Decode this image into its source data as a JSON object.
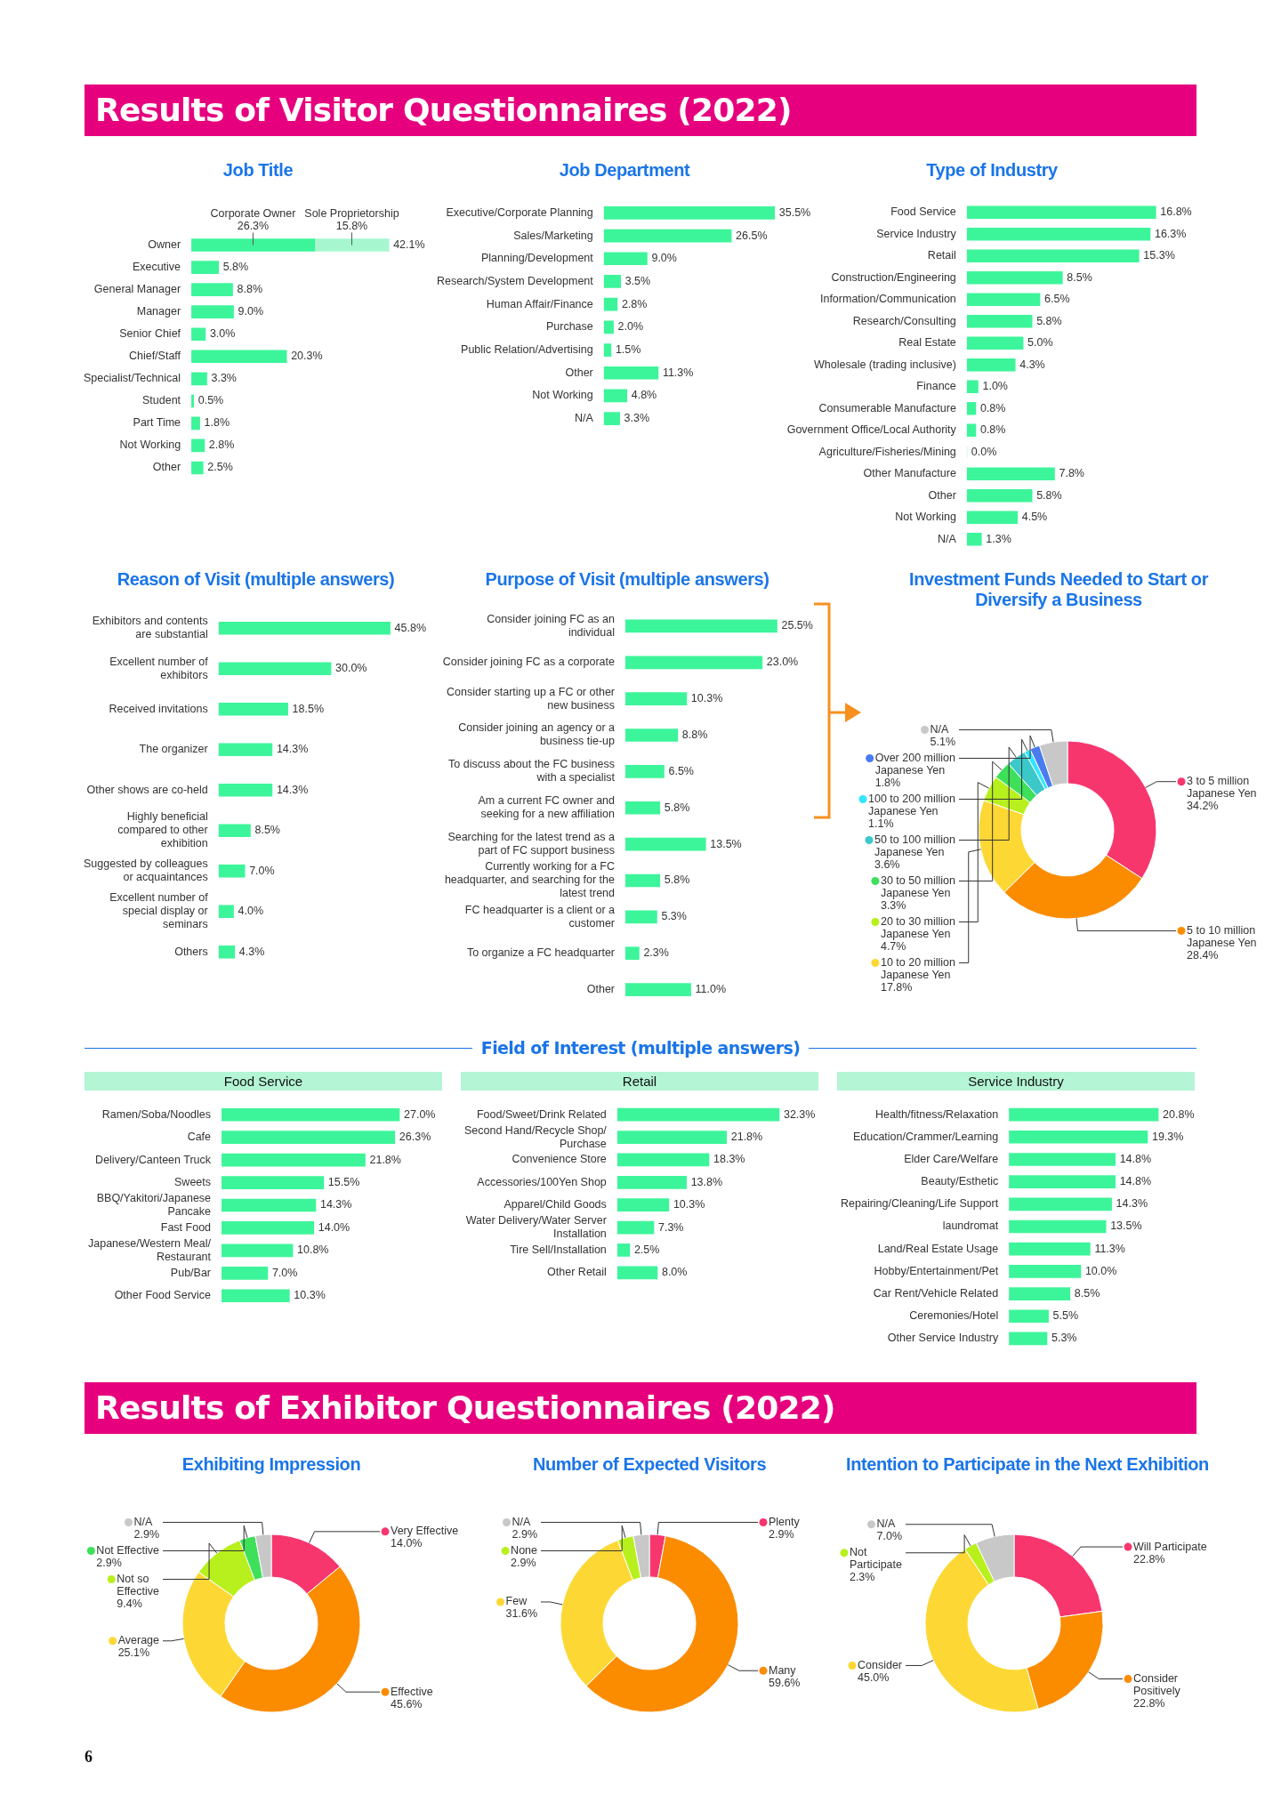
{
  "chart_data": [
    {
      "type": "other",
      "title": "Results of Visitor Questionnaires (2022)"
    },
    {
      "type": "bar",
      "title": "Job Title",
      "orientation": "horizontal",
      "stacked": true,
      "categories": [
        "Owner",
        "Executive",
        "General Manager",
        "Manager",
        "Senior Chief",
        "Chief/Staff",
        "Specialist/Technical",
        "Student",
        "Part Time",
        "Not Working",
        "Other"
      ],
      "series": [
        {
          "name": "Corporate Owner",
          "color": "#3cf59a",
          "values": [
            26.3,
            5.8,
            8.8,
            9.0,
            3.0,
            20.3,
            3.3,
            0.5,
            1.8,
            2.8,
            2.5
          ],
          "value_labels": [
            "26.3%",
            "5.8%",
            "8.8%",
            "9.0%",
            "3.0%",
            "20.3%",
            "3.3%",
            "0.5%",
            "1.8%",
            "2.8%",
            "2.5%"
          ]
        },
        {
          "name": "Sole Proprietorship",
          "color": "#a6f7cf",
          "values": [
            15.8,
            null,
            null,
            null,
            null,
            null,
            null,
            null,
            null,
            null,
            null
          ],
          "value_labels": [
            "15.8%",
            null,
            null,
            null,
            null,
            null,
            null,
            null,
            null,
            null,
            null
          ]
        }
      ],
      "totals": [
        "42.1%",
        null,
        null,
        null,
        null,
        null,
        null,
        null,
        null,
        null,
        null
      ]
    },
    {
      "type": "bar",
      "title": "Job Department",
      "orientation": "horizontal",
      "color": "#3cf59a",
      "categories": [
        "Executive/Corporate Planning",
        "Sales/Marketing",
        "Planning/Development",
        "Research/System Development",
        "Human Affair/Finance",
        "Purchase",
        "Public Relation/Advertising",
        "Other",
        "Not Working",
        "N/A"
      ],
      "values": [
        35.5,
        26.5,
        9.0,
        3.5,
        2.8,
        2.0,
        1.5,
        11.3,
        4.8,
        3.3
      ],
      "value_labels": [
        "35.5%",
        "26.5%",
        "9.0%",
        "3.5%",
        "2.8%",
        "2.0%",
        "1.5%",
        "11.3%",
        "4.8%",
        "3.3%"
      ]
    },
    {
      "type": "bar",
      "title": "Type of Industry",
      "orientation": "horizontal",
      "color": "#3cf59a",
      "categories": [
        "Food Service",
        "Service Industry",
        "Retail",
        "Construction/Engineering",
        "Information/Communication",
        "Research/Consulting",
        "Real Estate",
        "Wholesale (trading inclusive)",
        "Finance",
        "Consumerable Manufacture",
        "Government Office/Local Authority",
        "Agriculture/Fisheries/Mining",
        "Other Manufacture",
        "Other",
        "Not Working",
        "N/A"
      ],
      "values": [
        16.8,
        16.3,
        15.3,
        8.5,
        6.5,
        5.8,
        5.0,
        4.3,
        1.0,
        0.8,
        0.8,
        0.0,
        7.8,
        5.8,
        4.5,
        1.3
      ],
      "value_labels": [
        "16.8%",
        "16.3%",
        "15.3%",
        "8.5%",
        "6.5%",
        "5.8%",
        "5.0%",
        "4.3%",
        "1.0%",
        "0.8%",
        "0.8%",
        "0.0%",
        "7.8%",
        "5.8%",
        "4.5%",
        "1.3%"
      ]
    },
    {
      "type": "bar",
      "title": "Reason of Visit (multiple answers)",
      "orientation": "horizontal",
      "color": "#3cf59a",
      "categories": [
        "Exhibitors and contents are substantial",
        "Excellent number of exhibitors",
        "Received invitations",
        "The organizer",
        "Other shows are co-held",
        "Highly beneficial compared to other exhibition",
        "Suggested by colleagues or acquaintances",
        "Excellent number of special display or seminars",
        "Others"
      ],
      "values": [
        45.8,
        30.0,
        18.5,
        14.3,
        14.3,
        8.5,
        7.0,
        4.0,
        4.3
      ],
      "value_labels": [
        "45.8%",
        "30.0%",
        "18.5%",
        "14.3%",
        "14.3%",
        "8.5%",
        "7.0%",
        "4.0%",
        "4.3%"
      ]
    },
    {
      "type": "bar",
      "title": "Purpose of Visit (multiple answers)",
      "orientation": "horizontal",
      "color": "#3cf59a",
      "categories": [
        "Consider joining FC as an individual",
        "Consider joining FC as a corporate",
        "Consider starting up a FC or other new business",
        "Consider joining an agency or a business tie-up",
        "To discuss about the FC business with a specialist",
        "Am a current FC owner and seeking for a new affiliation",
        "Searching for the latest trend as a part of FC support business",
        "Currently working for a FC headquarter, and searching for the latest trend",
        "FC headquarter is a client or a customer",
        "To organize a FC headquarter",
        "Other"
      ],
      "values": [
        25.5,
        23.0,
        10.3,
        8.8,
        6.5,
        5.8,
        13.5,
        5.8,
        5.3,
        2.3,
        11.0
      ],
      "value_labels": [
        "25.5%",
        "23.0%",
        "10.3%",
        "8.8%",
        "6.5%",
        "5.8%",
        "13.5%",
        "5.8%",
        "5.3%",
        "2.3%",
        "11.0%"
      ]
    },
    {
      "type": "donut",
      "title": "Investment Funds Needed to Start or Diversify a Business",
      "categories": [
        "3 to 5 million Japanese Yen",
        "5 to 10 million Japanese Yen",
        "10 to 20 million Japanese Yen",
        "20 to 30 million Japanese Yen",
        "30 to 50 million Japanese Yen",
        "50 to 100 million Japanese Yen",
        "100 to 200 million Japanese Yen",
        "Over 200 million Japanese Yen",
        "N/A"
      ],
      "values": [
        34.2,
        28.4,
        17.8,
        4.7,
        3.3,
        3.6,
        1.1,
        1.8,
        5.1
      ],
      "value_labels": [
        "34.2%",
        "28.4%",
        "17.8%",
        "4.7%",
        "3.3%",
        "3.6%",
        "1.1%",
        "1.8%",
        "5.1%"
      ],
      "colors": [
        "#f7366e",
        "#fb8c00",
        "#fdd835",
        "#b8f01e",
        "#3ee05a",
        "#3cc8c8",
        "#32e6ff",
        "#4a7cf0",
        "#c8c8c8"
      ],
      "legend": "left"
    },
    {
      "type": "other",
      "title": "Field of Interest (multiple answers)"
    },
    {
      "type": "bar",
      "title": "Food Service",
      "orientation": "horizontal",
      "color": "#3cf59a",
      "categories": [
        "Ramen/Soba/Noodles",
        "Cafe",
        "Delivery/Canteen Truck",
        "Sweets",
        "BBQ/Yakitori/Japanese Pancake",
        "Fast Food",
        "Japanese/Western Meal/Restaurant",
        "Pub/Bar",
        "Other Food Service"
      ],
      "values": [
        27.0,
        26.3,
        21.8,
        15.5,
        14.3,
        14.0,
        10.8,
        7.0,
        10.3
      ],
      "value_labels": [
        "27.0%",
        "26.3%",
        "21.8%",
        "15.5%",
        "14.3%",
        "14.0%",
        "10.8%",
        "7.0%",
        "10.3%"
      ]
    },
    {
      "type": "bar",
      "title": "Retail",
      "orientation": "horizontal",
      "color": "#3cf59a",
      "categories": [
        "Food/Sweet/Drink Related",
        "Second Hand/Recycle Shop/Purchase",
        "Convenience Store",
        "Accessories/100Yen Shop",
        "Apparel/Child Goods",
        "Water Delivery/Water Server Installation",
        "Tire Sell/Installation",
        "Other Retail"
      ],
      "values": [
        32.3,
        21.8,
        18.3,
        13.8,
        10.3,
        7.3,
        2.5,
        8.0
      ],
      "value_labels": [
        "32.3%",
        "21.8%",
        "18.3%",
        "13.8%",
        "10.3%",
        "7.3%",
        "2.5%",
        "8.0%"
      ]
    },
    {
      "type": "bar",
      "title": "Service Industry",
      "orientation": "horizontal",
      "color": "#3cf59a",
      "categories": [
        "Health/fitness/Relaxation",
        "Education/Crammer/Learning",
        "Elder Care/Welfare",
        "Beauty/Esthetic",
        "Repairing/Cleaning/Life Support",
        "laundromat",
        "Land/Real Estate Usage",
        "Hobby/Entertainment/Pet",
        "Car Rent/Vehicle Related",
        "Ceremonies/Hotel",
        "Other Service Industry"
      ],
      "values": [
        20.8,
        19.3,
        14.8,
        14.8,
        14.3,
        13.5,
        11.3,
        10.0,
        8.5,
        5.5,
        5.3
      ],
      "value_labels": [
        "20.8%",
        "19.3%",
        "14.8%",
        "14.8%",
        "14.3%",
        "13.5%",
        "11.3%",
        "10.0%",
        "8.5%",
        "5.5%",
        "5.3%"
      ]
    },
    {
      "type": "other",
      "title": "Results of Exhibitor Questionnaires (2022)"
    },
    {
      "type": "donut",
      "title": "Exhibiting Impression",
      "categories": [
        "Very Effective",
        "Effective",
        "Average",
        "Not so Effective",
        "Not Effective",
        "N/A"
      ],
      "values": [
        14.0,
        45.6,
        25.1,
        9.4,
        2.9,
        2.9
      ],
      "value_labels": [
        "14.0%",
        "45.6%",
        "25.1%",
        "9.4%",
        "2.9%",
        "2.9%"
      ],
      "colors": [
        "#f7366e",
        "#fb8c00",
        "#fdd835",
        "#b8f01e",
        "#3ee05a",
        "#c8c8c8"
      ],
      "legend": "left"
    },
    {
      "type": "donut",
      "title": "Number of Expected Visitors",
      "categories": [
        "Plenty",
        "Many",
        "Few",
        "None",
        "N/A"
      ],
      "values": [
        2.9,
        59.6,
        31.6,
        2.9,
        2.9
      ],
      "value_labels": [
        "2.9%",
        "59.6%",
        "31.6%",
        "2.9%",
        "2.9%"
      ],
      "colors": [
        "#f7366e",
        "#fb8c00",
        "#fdd835",
        "#b8f01e",
        "#c8c8c8"
      ],
      "legend": "left"
    },
    {
      "type": "donut",
      "title": "Intention to Participate in the Next Exhibition",
      "categories": [
        "Will Participate",
        "Consider Positively",
        "Consider",
        "Not Participate",
        "N/A"
      ],
      "values": [
        22.8,
        22.8,
        45.0,
        2.3,
        7.0
      ],
      "value_labels": [
        "22.8%",
        "22.8%",
        "45.0%",
        "2.3%",
        "7.0%"
      ],
      "colors": [
        "#f7366e",
        "#fb8c00",
        "#fdd835",
        "#b8f01e",
        "#c8c8c8"
      ],
      "legend": "top right"
    },
    {
      "type": "other",
      "annotations": [
        "6"
      ]
    }
  ]
}
